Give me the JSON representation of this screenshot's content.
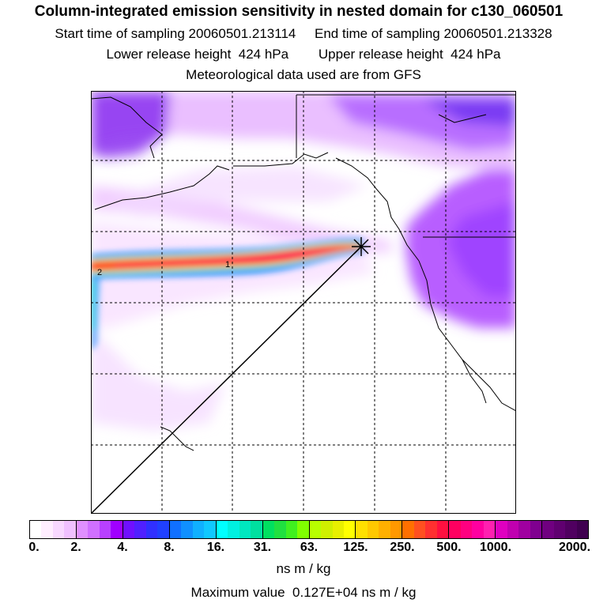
{
  "header": {
    "title": "Column-integrated emission sensitivity in nested domain for c130_060501",
    "start_label": "Start time of sampling 20060501.213114",
    "end_label": "End time of sampling 20060501.213328",
    "lower_label": "Lower release height  424 hPa",
    "upper_label": "Upper release height  424 hPa",
    "met_label": "Meteorological data used are from GFS"
  },
  "map": {
    "contour_labels": [
      "1",
      "2"
    ],
    "release_marker": "release-point-star",
    "colors": {
      "plume_core": "#ff0066",
      "plume_red": "#ff2020",
      "plume_orange": "#ff8c00",
      "plume_yellow": "#ffe000",
      "plume_green": "#00d060",
      "plume_cyan": "#00e8e8",
      "plume_blue": "#2060ff",
      "background_purple": "#a000ff",
      "light_pink": "#f0c8ff",
      "coastline": "#000000"
    }
  },
  "colorbar": {
    "labels": [
      "0.",
      "2.",
      "4.",
      "8.",
      "16.",
      "31.",
      "63.",
      "125.",
      "250.",
      "500.",
      "1000.",
      "2000."
    ],
    "segments": [
      [
        "#ffffff",
        "#ffeeff",
        "#f8d8ff",
        "#f0c0ff"
      ],
      [
        "#e090ff",
        "#d070ff",
        "#b840ff",
        "#a000ff"
      ],
      [
        "#7010ff",
        "#5020ff",
        "#3030ff",
        "#2040ff"
      ],
      [
        "#1070ff",
        "#1090ff",
        "#10b0ff",
        "#10c8ff"
      ],
      [
        "#00ffff",
        "#00f0e0",
        "#00e8c0",
        "#00e0a0"
      ],
      [
        "#00e060",
        "#20e040",
        "#40f020",
        "#80ff00"
      ],
      [
        "#b8ff00",
        "#d0f000",
        "#e8f000",
        "#ffff00"
      ],
      [
        "#ffe000",
        "#ffc800",
        "#ffb000",
        "#ff9800"
      ],
      [
        "#ff7000",
        "#ff5020",
        "#ff3030",
        "#ff1040"
      ],
      [
        "#ff0060",
        "#ff0080",
        "#ff00a0",
        "#ff20b0"
      ],
      [
        "#e000c0",
        "#c000b0",
        "#a000a0",
        "#800090"
      ],
      [
        "#700080",
        "#600070",
        "#500060",
        "#400050"
      ]
    ]
  },
  "footer": {
    "units": "ns m / kg",
    "max_value": "Maximum value  0.127E+04 ns m / kg"
  }
}
